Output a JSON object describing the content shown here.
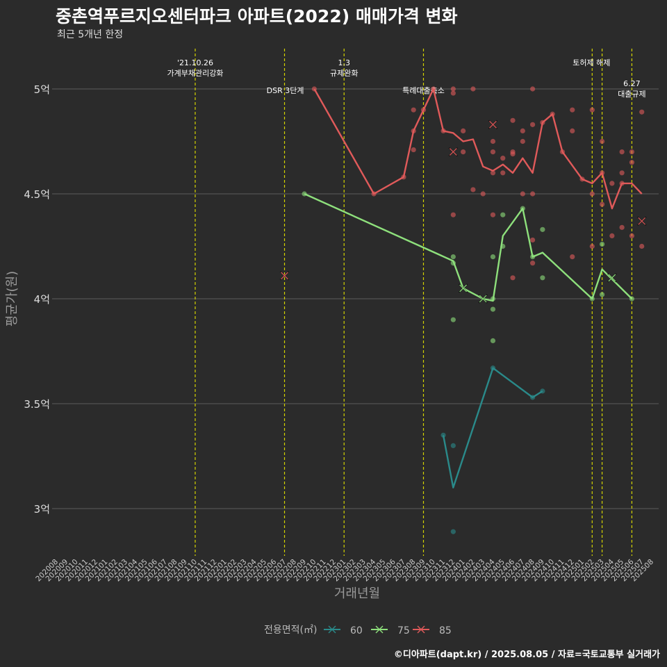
{
  "header": {
    "title": "중촌역푸르지오센터파크 아파트(2022) 매매가격 변화",
    "subtitle": "최근 5개년 한정"
  },
  "footer": {
    "credit": "©디아파트(dapt.kr) / 2025.08.05 / 자료=국토교통부 실거래가"
  },
  "colors": {
    "background": "#2b2b2b",
    "grid": "#5e5e5e",
    "event_line": "#d4d400",
    "s60": "#2a8a8a",
    "s75": "#8ee07c",
    "s85": "#e05a5a"
  },
  "chart_data": {
    "type": "line",
    "xlabel": "거래년월",
    "ylabel": "평균가(원)",
    "ylim": [
      2.8,
      5.2
    ],
    "yticks": [
      3,
      3.5,
      4,
      4.5,
      5
    ],
    "ytick_labels": [
      "3억",
      "3.5억",
      "4억",
      "4.5억",
      "5억"
    ],
    "x_categories": [
      "202008",
      "202009",
      "202010",
      "202011",
      "202012",
      "202101",
      "202102",
      "202103",
      "202104",
      "202105",
      "202106",
      "202107",
      "202108",
      "202109",
      "202110",
      "202111",
      "202112",
      "202201",
      "202202",
      "202203",
      "202204",
      "202205",
      "202206",
      "202207",
      "202208",
      "202209",
      "202210",
      "202211",
      "202212",
      "202301",
      "202302",
      "202303",
      "202304",
      "202305",
      "202306",
      "202307",
      "202308",
      "202309",
      "202310",
      "202311",
      "202312",
      "202401",
      "202402",
      "202403",
      "202404",
      "202405",
      "202406",
      "202407",
      "202408",
      "202409",
      "202410",
      "202411",
      "202412",
      "202501",
      "202502",
      "202503",
      "202504",
      "202505",
      "202506",
      "202507",
      "202508"
    ],
    "events": [
      {
        "month": "202110",
        "lines": [
          "'21.10.26",
          "가계부채관리강화"
        ],
        "row": 1
      },
      {
        "month": "202207",
        "lines": [
          "DSR 3단계"
        ],
        "row": 2,
        "align": "left"
      },
      {
        "month": "202301",
        "lines": [
          "1.3",
          "규제완화"
        ],
        "row": 1
      },
      {
        "month": "202309",
        "lines": [
          "특례대출축소"
        ],
        "row": 2
      },
      {
        "month": "202502",
        "lines": [
          "토허제 해제"
        ],
        "row": 1,
        "align": "right"
      },
      {
        "month": "202503",
        "lines": [],
        "row": 1
      },
      {
        "month": "202506",
        "lines": [
          "6.27",
          "대출규제"
        ],
        "row": 1.6
      }
    ],
    "legend": {
      "title": "전용면적(㎡)",
      "items": [
        "60",
        "75",
        "85"
      ]
    },
    "series": [
      {
        "name": "60",
        "line": [
          [
            "202311",
            3.35
          ],
          [
            "202312",
            3.1
          ],
          [
            "202404",
            3.67
          ],
          [
            "202408",
            3.53
          ],
          [
            "202409",
            3.56
          ]
        ],
        "points": [
          [
            "202311",
            3.35
          ],
          [
            "202312",
            3.3
          ],
          [
            "202312",
            2.89
          ],
          [
            "202404",
            3.67
          ],
          [
            "202408",
            3.53
          ],
          [
            "202409",
            3.56
          ]
        ],
        "crosses": []
      },
      {
        "name": "75",
        "line": [
          [
            "202209",
            4.5
          ],
          [
            "202312",
            4.18
          ],
          [
            "202401",
            4.05
          ],
          [
            "202403",
            4.0
          ],
          [
            "202404",
            3.99
          ],
          [
            "202405",
            4.3
          ],
          [
            "202407",
            4.43
          ],
          [
            "202408",
            4.2
          ],
          [
            "202409",
            4.22
          ],
          [
            "202502",
            4.0
          ],
          [
            "202503",
            4.14
          ],
          [
            "202506",
            4.0
          ]
        ],
        "points": [
          [
            "202209",
            4.5
          ],
          [
            "202312",
            4.2
          ],
          [
            "202312",
            4.17
          ],
          [
            "202312",
            3.9
          ],
          [
            "202404",
            4.2
          ],
          [
            "202404",
            4.0
          ],
          [
            "202404",
            3.95
          ],
          [
            "202404",
            3.8
          ],
          [
            "202405",
            4.4
          ],
          [
            "202405",
            4.25
          ],
          [
            "202407",
            4.43
          ],
          [
            "202408",
            4.2
          ],
          [
            "202409",
            4.33
          ],
          [
            "202409",
            4.1
          ],
          [
            "202502",
            4.0
          ],
          [
            "202503",
            4.26
          ],
          [
            "202503",
            4.02
          ],
          [
            "202506",
            4.0
          ]
        ],
        "crosses": [
          [
            "202401",
            4.05
          ],
          [
            "202403",
            4.0
          ],
          [
            "202504",
            4.1
          ]
        ]
      },
      {
        "name": "85",
        "line": [
          [
            "202210",
            5.0
          ],
          [
            "202304",
            4.5
          ],
          [
            "202307",
            4.58
          ],
          [
            "202308",
            4.8
          ],
          [
            "202309",
            4.9
          ],
          [
            "202310",
            5.0
          ],
          [
            "202311",
            4.8
          ],
          [
            "202312",
            4.79
          ],
          [
            "202401",
            4.75
          ],
          [
            "202402",
            4.76
          ],
          [
            "202403",
            4.63
          ],
          [
            "202404",
            4.61
          ],
          [
            "202405",
            4.64
          ],
          [
            "202406",
            4.6
          ],
          [
            "202407",
            4.67
          ],
          [
            "202408",
            4.6
          ],
          [
            "202409",
            4.84
          ],
          [
            "202410",
            4.88
          ],
          [
            "202411",
            4.7
          ],
          [
            "202501",
            4.57
          ],
          [
            "202502",
            4.55
          ],
          [
            "202503",
            4.6
          ],
          [
            "202504",
            4.43
          ],
          [
            "202505",
            4.55
          ],
          [
            "202506",
            4.55
          ],
          [
            "202507",
            4.5
          ]
        ],
        "points": [
          [
            "202210",
            5.0
          ],
          [
            "202304",
            4.5
          ],
          [
            "202307",
            4.58
          ],
          [
            "202308",
            4.9
          ],
          [
            "202308",
            4.8
          ],
          [
            "202308",
            4.71
          ],
          [
            "202309",
            4.9
          ],
          [
            "202310",
            5.0
          ],
          [
            "202311",
            4.8
          ],
          [
            "202312",
            5.0
          ],
          [
            "202312",
            4.98
          ],
          [
            "202312",
            4.4
          ],
          [
            "202401",
            4.8
          ],
          [
            "202401",
            4.7
          ],
          [
            "202402",
            5.0
          ],
          [
            "202402",
            4.52
          ],
          [
            "202403",
            4.5
          ],
          [
            "202404",
            4.75
          ],
          [
            "202404",
            4.7
          ],
          [
            "202404",
            4.6
          ],
          [
            "202404",
            4.4
          ],
          [
            "202405",
            4.67
          ],
          [
            "202405",
            4.6
          ],
          [
            "202406",
            4.85
          ],
          [
            "202406",
            4.7
          ],
          [
            "202406",
            4.69
          ],
          [
            "202406",
            4.1
          ],
          [
            "202407",
            4.8
          ],
          [
            "202407",
            4.75
          ],
          [
            "202407",
            4.5
          ],
          [
            "202408",
            5.0
          ],
          [
            "202408",
            4.83
          ],
          [
            "202408",
            4.5
          ],
          [
            "202408",
            4.28
          ],
          [
            "202408",
            4.17
          ],
          [
            "202409",
            4.84
          ],
          [
            "202410",
            4.88
          ],
          [
            "202411",
            4.7
          ],
          [
            "202412",
            4.9
          ],
          [
            "202412",
            4.8
          ],
          [
            "202412",
            4.2
          ],
          [
            "202501",
            4.57
          ],
          [
            "202502",
            4.9
          ],
          [
            "202502",
            4.5
          ],
          [
            "202502",
            4.25
          ],
          [
            "202503",
            4.75
          ],
          [
            "202503",
            4.6
          ],
          [
            "202503",
            4.45
          ],
          [
            "202504",
            4.55
          ],
          [
            "202504",
            4.3
          ],
          [
            "202505",
            4.7
          ],
          [
            "202505",
            4.6
          ],
          [
            "202505",
            4.55
          ],
          [
            "202505",
            4.34
          ],
          [
            "202506",
            4.7
          ],
          [
            "202506",
            4.65
          ],
          [
            "202506",
            4.3
          ],
          [
            "202507",
            4.89
          ],
          [
            "202507",
            4.25
          ]
        ],
        "crosses": [
          [
            "202207",
            4.11
          ],
          [
            "202312",
            4.7
          ],
          [
            "202404",
            4.83
          ],
          [
            "202507",
            4.37
          ]
        ]
      }
    ]
  }
}
